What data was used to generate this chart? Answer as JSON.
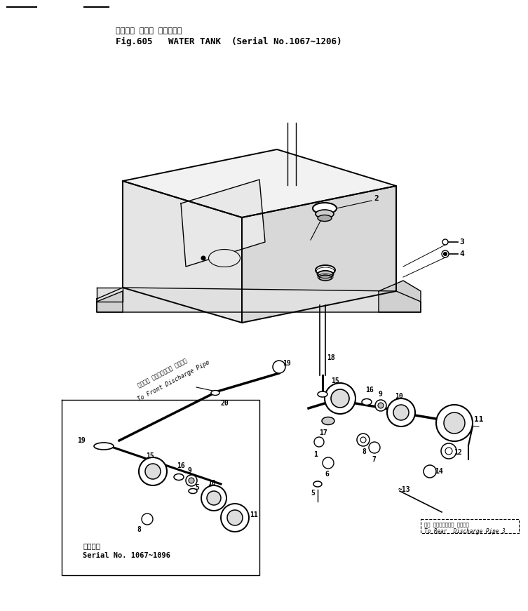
{
  "bg_color": "#ffffff",
  "line_color": "#000000",
  "fig_width": 7.53,
  "fig_height": 8.71,
  "dpi": 100,
  "title_jp": "ウォータ タンク （適用号機",
  "title_en": "Fig.605   WATER TANK  (Serial No.1067~1206)",
  "serial_label_jp": "適用号機",
  "serial_label_en": "Serial No. 1067~1096",
  "front_pipe_jp": "フロント ディスチャージ パイプへ",
  "front_pipe_en": "To Front Discharge Pipe",
  "rear_pipe_jp": "リヤ ディスチャージ パイプへ ～13",
  "rear_pipe_en": "To Rear  Discharge Pipe 3"
}
